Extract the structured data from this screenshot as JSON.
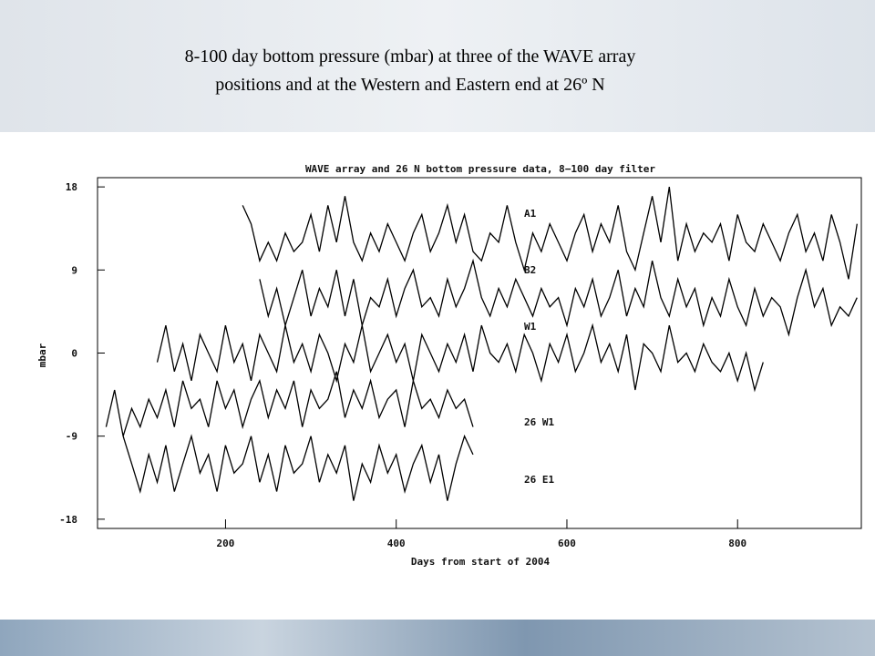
{
  "slide_title": [
    "8-100 day bottom pressure (mbar) at three of the WAVE array",
    "positions and at the Western and Eastern end at 26º N"
  ],
  "chart_data": {
    "type": "line",
    "title": "WAVE array and 26 N bottom pressure data, 8−100 day filter",
    "x_label": "Days from start of 2004",
    "y_label": "mbar",
    "xlim": [
      50,
      945
    ],
    "xticks": [
      200,
      400,
      600,
      800
    ],
    "ylim": [
      -19,
      19
    ],
    "yticks": [
      -18,
      -9,
      0,
      9,
      18
    ],
    "series": [
      {
        "name": "A1",
        "color": "#000000",
        "x": [
          220,
          230,
          240,
          250,
          260,
          270,
          280,
          290,
          300,
          310,
          320,
          330,
          340,
          350,
          360,
          370,
          380,
          390,
          400,
          410,
          420,
          430,
          440,
          450,
          460,
          470,
          480,
          490,
          500,
          510,
          520,
          530,
          540,
          550,
          560,
          570,
          580,
          590,
          600,
          610,
          620,
          630,
          640,
          650,
          660,
          670,
          680,
          690,
          700,
          710,
          720,
          730,
          740,
          750,
          760,
          770,
          780,
          790,
          800,
          810,
          820,
          830,
          840,
          850,
          860,
          870,
          880,
          890,
          900,
          910,
          920,
          930,
          940
        ],
        "values": [
          16,
          14,
          10,
          12,
          10,
          13,
          11,
          12,
          15,
          11,
          16,
          12,
          17,
          12,
          10,
          13,
          11,
          14,
          12,
          10,
          13,
          15,
          11,
          13,
          16,
          12,
          15,
          11,
          10,
          13,
          12,
          16,
          12,
          9,
          13,
          11,
          14,
          12,
          10,
          13,
          15,
          11,
          14,
          12,
          16,
          11,
          9,
          13,
          17,
          12,
          18,
          10,
          14,
          11,
          13,
          12,
          14,
          10,
          15,
          12,
          11,
          14,
          12,
          10,
          13,
          15,
          11,
          13,
          10,
          15,
          12,
          8,
          14
        ]
      },
      {
        "name": "B2",
        "color": "#000000",
        "x": [
          240,
          250,
          260,
          270,
          280,
          290,
          300,
          310,
          320,
          330,
          340,
          350,
          360,
          370,
          380,
          390,
          400,
          410,
          420,
          430,
          440,
          450,
          460,
          470,
          480,
          490,
          500,
          510,
          520,
          530,
          540,
          550,
          560,
          570,
          580,
          590,
          600,
          610,
          620,
          630,
          640,
          650,
          660,
          670,
          680,
          690,
          700,
          710,
          720,
          730,
          740,
          750,
          760,
          770,
          780,
          790,
          800,
          810,
          820,
          830,
          840,
          850,
          860,
          870,
          880,
          890,
          900,
          910,
          920,
          930,
          940
        ],
        "values": [
          8,
          4,
          7,
          3,
          6,
          9,
          4,
          7,
          5,
          9,
          4,
          8,
          3,
          6,
          5,
          8,
          4,
          7,
          9,
          5,
          6,
          4,
          8,
          5,
          7,
          10,
          6,
          4,
          7,
          5,
          8,
          6,
          4,
          7,
          5,
          6,
          3,
          7,
          5,
          8,
          4,
          6,
          9,
          4,
          7,
          5,
          10,
          6,
          4,
          8,
          5,
          7,
          3,
          6,
          4,
          8,
          5,
          3,
          7,
          4,
          6,
          5,
          2,
          6,
          9,
          5,
          7,
          3,
          5,
          4,
          6
        ]
      },
      {
        "name": "W1",
        "color": "#000000",
        "x": [
          120,
          130,
          140,
          150,
          160,
          170,
          180,
          190,
          200,
          210,
          220,
          230,
          240,
          250,
          260,
          270,
          280,
          290,
          300,
          310,
          320,
          330,
          340,
          350,
          360,
          370,
          380,
          390,
          400,
          410,
          420,
          430,
          440,
          450,
          460,
          470,
          480,
          490,
          500,
          510,
          520,
          530,
          540,
          550,
          560,
          570,
          580,
          590,
          600,
          610,
          620,
          630,
          640,
          650,
          660,
          670,
          680,
          690,
          700,
          710,
          720,
          730,
          740,
          750,
          760,
          770,
          780,
          790,
          800,
          810,
          820,
          830
        ],
        "values": [
          -1,
          3,
          -2,
          1,
          -3,
          2,
          0,
          -2,
          3,
          -1,
          1,
          -3,
          2,
          0,
          -2,
          3,
          -1,
          1,
          -2,
          2,
          0,
          -3,
          1,
          -1,
          3,
          -2,
          0,
          2,
          -1,
          1,
          -3,
          2,
          0,
          -2,
          1,
          -1,
          2,
          -2,
          3,
          0,
          -1,
          1,
          -2,
          2,
          0,
          -3,
          1,
          -1,
          2,
          -2,
          0,
          3,
          -1,
          1,
          -2,
          2,
          -4,
          1,
          0,
          -2,
          3,
          -1,
          0,
          -2,
          1,
          -1,
          -2,
          0,
          -3,
          0,
          -4,
          -1
        ]
      },
      {
        "name": "26 W1",
        "color": "#000000",
        "x": [
          60,
          70,
          80,
          90,
          100,
          110,
          120,
          130,
          140,
          150,
          160,
          170,
          180,
          190,
          200,
          210,
          220,
          230,
          240,
          250,
          260,
          270,
          280,
          290,
          300,
          310,
          320,
          330,
          340,
          350,
          360,
          370,
          380,
          390,
          400,
          410,
          420,
          430,
          440,
          450,
          460,
          470,
          480,
          490
        ],
        "values": [
          -8,
          -4,
          -9,
          -6,
          -8,
          -5,
          -7,
          -4,
          -8,
          -3,
          -6,
          -5,
          -8,
          -3,
          -6,
          -4,
          -8,
          -5,
          -3,
          -7,
          -4,
          -6,
          -3,
          -8,
          -4,
          -6,
          -5,
          -2,
          -7,
          -4,
          -6,
          -3,
          -7,
          -5,
          -4,
          -8,
          -3,
          -6,
          -5,
          -7,
          -4,
          -6,
          -5,
          -8
        ]
      },
      {
        "name": "26 E1",
        "color": "#000000",
        "x": [
          80,
          90,
          100,
          110,
          120,
          130,
          140,
          150,
          160,
          170,
          180,
          190,
          200,
          210,
          220,
          230,
          240,
          250,
          260,
          270,
          280,
          290,
          300,
          310,
          320,
          330,
          340,
          350,
          360,
          370,
          380,
          390,
          400,
          410,
          420,
          430,
          440,
          450,
          460,
          470,
          480,
          490
        ],
        "values": [
          -9,
          -12,
          -15,
          -11,
          -14,
          -10,
          -15,
          -12,
          -9,
          -13,
          -11,
          -15,
          -10,
          -13,
          -12,
          -9,
          -14,
          -11,
          -15,
          -10,
          -13,
          -12,
          -9,
          -14,
          -11,
          -13,
          -10,
          -16,
          -12,
          -14,
          -10,
          -13,
          -11,
          -15,
          -12,
          -10,
          -14,
          -11,
          -16,
          -12,
          -9,
          -11
        ]
      }
    ]
  }
}
